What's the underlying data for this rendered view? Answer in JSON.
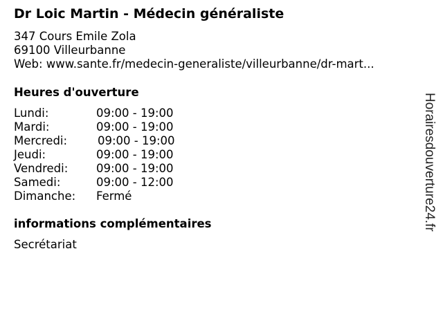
{
  "title": "Dr Loic Martin - Médecin généraliste",
  "address": {
    "street": "347 Cours Emile Zola",
    "city": "69100 Villeurbanne",
    "web": "Web: www.sante.fr/medecin-generaliste/villeurbanne/dr-mart..."
  },
  "hours": {
    "heading": "Heures d'ouverture",
    "rows": [
      {
        "day": "Lundi:",
        "time": "09:00 - 19:00"
      },
      {
        "day": "Mardi:",
        "time": "09:00 - 19:00"
      },
      {
        "day": "Mercredi:",
        "time": "09:00 - 19:00"
      },
      {
        "day": "Jeudi:",
        "time": "09:00 - 19:00"
      },
      {
        "day": "Vendredi:",
        "time": "09:00 - 19:00"
      },
      {
        "day": "Samedi:",
        "time": "09:00 - 12:00"
      },
      {
        "day": "Dimanche:",
        "time": "Fermé"
      }
    ]
  },
  "extra": {
    "heading": "informations complémentaires",
    "text": "Secrétariat"
  },
  "watermark": "Horairesdouverture24.fr"
}
